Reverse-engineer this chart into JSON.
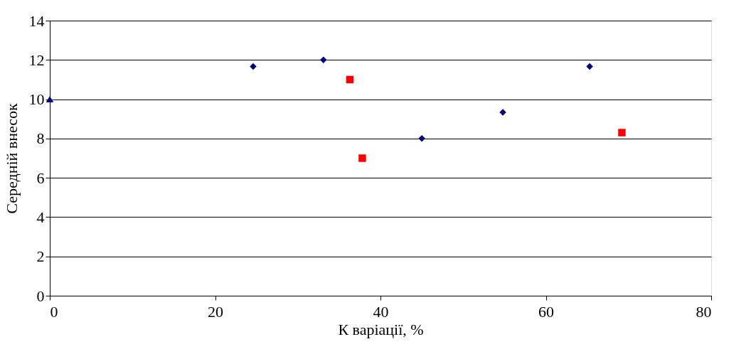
{
  "chart_data": {
    "type": "scatter",
    "xlabel": "К варіації, %",
    "ylabel": "Середній внесок",
    "xlim": [
      0,
      80
    ],
    "xticks": [
      0,
      20,
      40,
      60,
      80
    ],
    "ylim": [
      0,
      14
    ],
    "yticks": [
      0,
      2,
      4,
      6,
      8,
      10,
      12,
      14
    ],
    "grid": "y",
    "series": [
      {
        "color": "#000080",
        "marker": "diamond",
        "x": [
          24.6,
          33.1,
          45.0,
          54.8,
          65.3
        ],
        "values": [
          11.67,
          12.0,
          8.0,
          9.33,
          11.67
        ]
      },
      {
        "color": "#ff0000",
        "marker": "square",
        "x": [
          36.3,
          37.8,
          69.2
        ],
        "values": [
          11.0,
          7.0,
          8.3
        ]
      },
      {
        "color": "#000080",
        "marker": "triangle",
        "x": [
          0
        ],
        "values": [
          10.0
        ]
      }
    ]
  }
}
